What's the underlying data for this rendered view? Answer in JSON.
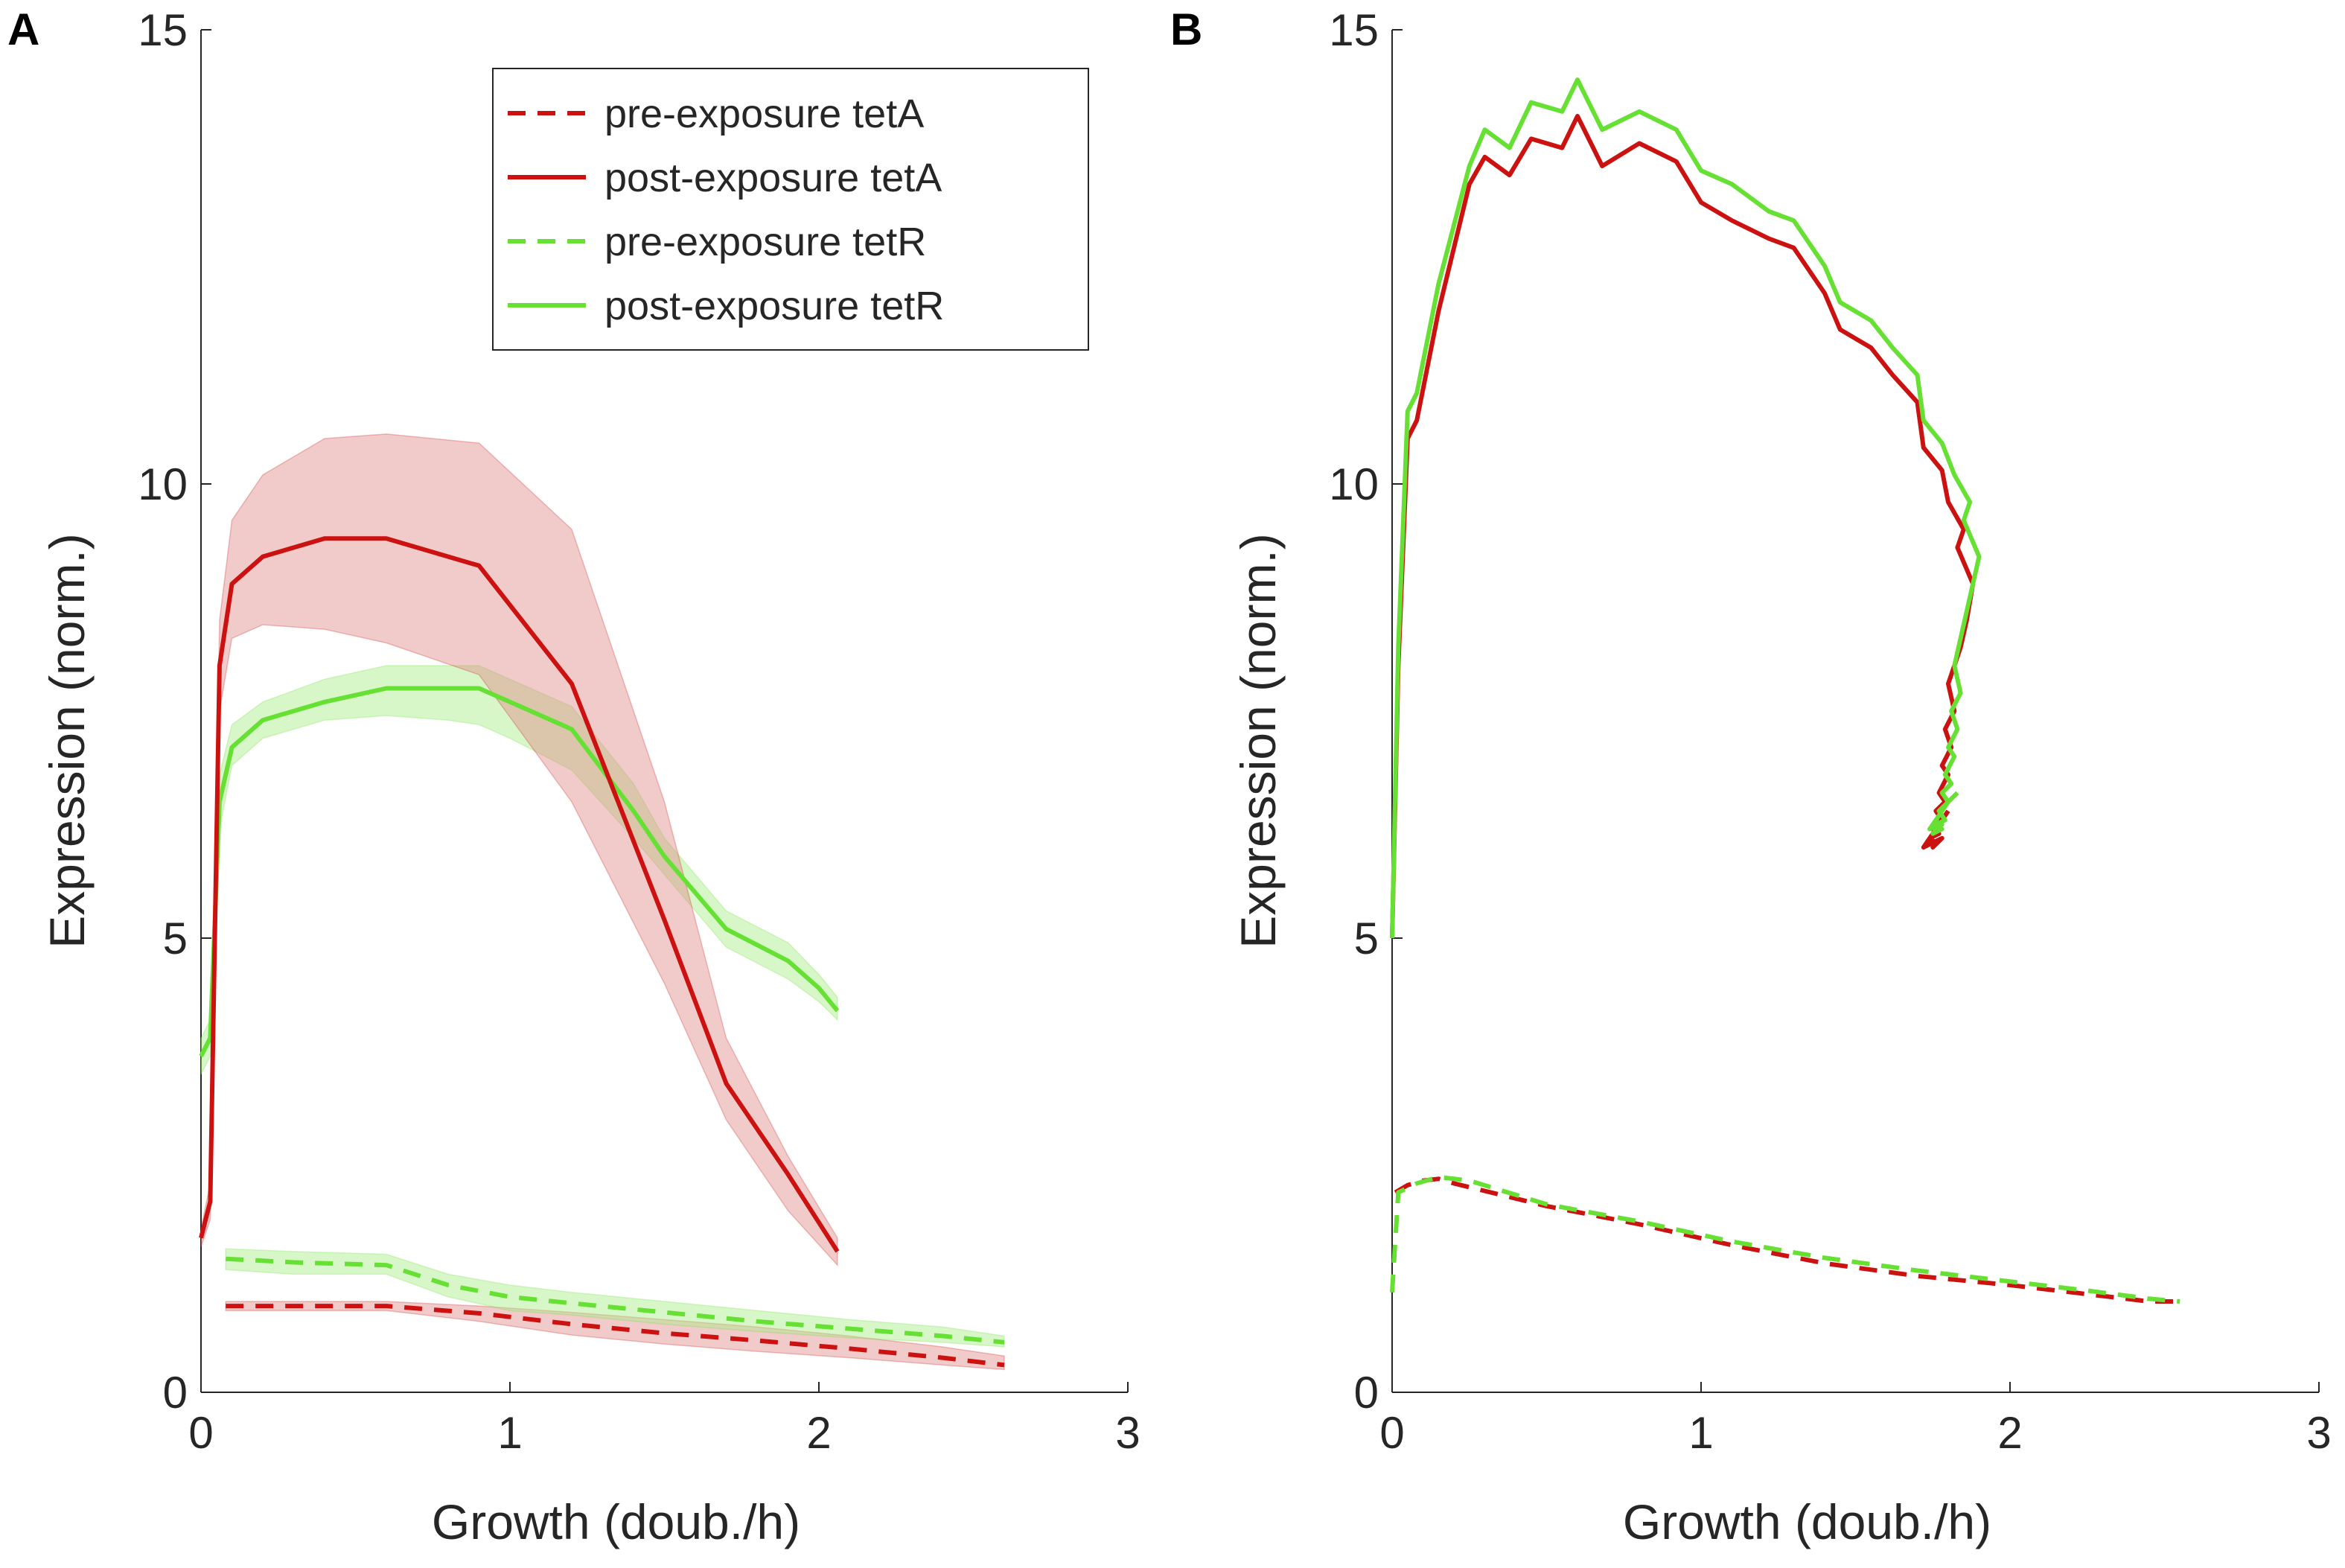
{
  "colors": {
    "red": "#cc1111",
    "green": "#66e033",
    "red_band": "#e08a8a",
    "green_band": "#a8ee88",
    "axis": "#262626"
  },
  "chart_data": [
    {
      "panel": "A",
      "type": "line",
      "xlabel": "Growth (doub./h)",
      "ylabel": "Expression (norm.)",
      "xlim": [
        0,
        3
      ],
      "ylim": [
        0,
        15
      ],
      "xticks": [
        "0",
        "1",
        "2",
        "3"
      ],
      "yticks": [
        "0",
        "5",
        "10",
        "15"
      ],
      "legend": {
        "position": "top-right",
        "entries": [
          {
            "label": "pre-exposure tetA",
            "color": "#cc1111",
            "dash": true
          },
          {
            "label": "post-exposure tetA",
            "color": "#cc1111",
            "dash": false
          },
          {
            "label": "pre-exposure tetR",
            "color": "#66e033",
            "dash": true
          },
          {
            "label": "post-exposure tetR",
            "color": "#66e033",
            "dash": false
          }
        ]
      },
      "series": [
        {
          "name": "pre-exposure tetA",
          "color": "#cc1111",
          "dash": true,
          "shade": true,
          "x": [
            0.08,
            0.3,
            0.6,
            0.9,
            1.2,
            1.5,
            1.8,
            2.1,
            2.4,
            2.6
          ],
          "y": [
            0.95,
            0.95,
            0.95,
            0.87,
            0.75,
            0.65,
            0.57,
            0.48,
            0.38,
            0.3
          ],
          "lower": [
            0.9,
            0.9,
            0.9,
            0.78,
            0.63,
            0.53,
            0.45,
            0.38,
            0.3,
            0.25
          ],
          "upper": [
            1.0,
            1.0,
            1.0,
            0.95,
            0.88,
            0.8,
            0.72,
            0.62,
            0.5,
            0.4
          ]
        },
        {
          "name": "pre-exposure tetR",
          "color": "#66e033",
          "dash": true,
          "shade": true,
          "x": [
            0.08,
            0.3,
            0.6,
            0.8,
            1.0,
            1.2,
            1.5,
            1.8,
            2.1,
            2.4,
            2.6
          ],
          "y": [
            1.47,
            1.43,
            1.4,
            1.18,
            1.05,
            0.98,
            0.88,
            0.78,
            0.7,
            0.62,
            0.55
          ],
          "lower": [
            1.35,
            1.3,
            1.3,
            1.05,
            0.9,
            0.85,
            0.75,
            0.67,
            0.6,
            0.55,
            0.5
          ],
          "upper": [
            1.58,
            1.55,
            1.52,
            1.3,
            1.18,
            1.1,
            1.0,
            0.9,
            0.8,
            0.72,
            0.62
          ]
        },
        {
          "name": "post-exposure tetR",
          "color": "#66e033",
          "dash": false,
          "shade": true,
          "x": [
            0.0,
            0.03,
            0.06,
            0.1,
            0.2,
            0.4,
            0.6,
            0.8,
            0.9,
            1.0,
            1.2,
            1.4,
            1.5,
            1.7,
            1.9,
            2.0,
            2.06
          ],
          "y": [
            3.7,
            3.9,
            6.5,
            7.1,
            7.4,
            7.6,
            7.75,
            7.75,
            7.75,
            7.6,
            7.3,
            6.4,
            5.9,
            5.1,
            4.75,
            4.45,
            4.2
          ],
          "lower": [
            3.5,
            3.7,
            6.2,
            6.9,
            7.2,
            7.4,
            7.45,
            7.4,
            7.35,
            7.2,
            6.85,
            6.1,
            5.7,
            4.9,
            4.55,
            4.3,
            4.1
          ],
          "upper": [
            3.9,
            4.1,
            6.8,
            7.35,
            7.6,
            7.85,
            8.0,
            8.0,
            8.0,
            7.85,
            7.55,
            6.7,
            6.1,
            5.3,
            4.95,
            4.6,
            4.35
          ]
        },
        {
          "name": "post-exposure tetA",
          "color": "#cc1111",
          "dash": false,
          "shade": true,
          "x": [
            0.0,
            0.03,
            0.06,
            0.1,
            0.2,
            0.4,
            0.6,
            0.9,
            1.2,
            1.35,
            1.5,
            1.7,
            1.9,
            2.06
          ],
          "y": [
            1.7,
            2.1,
            8.0,
            8.9,
            9.2,
            9.4,
            9.4,
            9.1,
            7.8,
            6.5,
            5.2,
            3.4,
            2.4,
            1.55
          ],
          "lower": [
            1.6,
            1.9,
            7.5,
            8.3,
            8.45,
            8.4,
            8.25,
            7.9,
            6.5,
            5.5,
            4.5,
            3.0,
            2.0,
            1.4
          ],
          "upper": [
            1.8,
            2.3,
            8.5,
            9.6,
            10.1,
            10.5,
            10.55,
            10.45,
            9.5,
            8.0,
            6.5,
            3.9,
            2.6,
            1.7
          ]
        }
      ]
    },
    {
      "panel": "B",
      "type": "line",
      "xlabel": "Growth (doub./h)",
      "ylabel": "Expression (norm.)",
      "xlim": [
        0,
        3
      ],
      "ylim": [
        0,
        15
      ],
      "xticks": [
        "0",
        "1",
        "2",
        "3"
      ],
      "yticks": [
        "0",
        "5",
        "10",
        "15"
      ],
      "series": [
        {
          "name": "pre-exposure tetA",
          "color": "#cc1111",
          "dash": true,
          "shade": false,
          "x": [
            0.01,
            0.05,
            0.1,
            0.15,
            0.2,
            0.5,
            0.8,
            1.1,
            1.4,
            1.7,
            2.0,
            2.25,
            2.45,
            2.55
          ],
          "y": [
            2.2,
            2.28,
            2.33,
            2.35,
            2.3,
            2.05,
            1.85,
            1.62,
            1.42,
            1.28,
            1.18,
            1.08,
            1.0,
            1.0
          ]
        },
        {
          "name": "pre-exposure tetR",
          "color": "#66e033",
          "dash": true,
          "shade": false,
          "x": [
            0.0,
            0.02,
            0.08,
            0.15,
            0.25,
            0.5,
            0.8,
            1.1,
            1.4,
            1.7,
            2.0,
            2.25,
            2.45,
            2.55
          ],
          "y": [
            1.1,
            2.2,
            2.3,
            2.37,
            2.33,
            2.07,
            1.88,
            1.66,
            1.48,
            1.34,
            1.22,
            1.12,
            1.03,
            1.0
          ]
        },
        {
          "name": "post-exposure tetA",
          "color": "#cc1111",
          "dash": false,
          "shade": false,
          "x": [
            0.0,
            0.02,
            0.05,
            0.08,
            0.15,
            0.25,
            0.3,
            0.38,
            0.45,
            0.55,
            0.6,
            0.68,
            0.8,
            0.92,
            1.0,
            1.1,
            1.22,
            1.3,
            1.4,
            1.45,
            1.55,
            1.62,
            1.7,
            1.72,
            1.78,
            1.8,
            1.85,
            1.83,
            1.88,
            1.86,
            1.84,
            1.82,
            1.8,
            1.82,
            1.79,
            1.81,
            1.78,
            1.8,
            1.77,
            1.79,
            1.76,
            1.78,
            1.75,
            1.77,
            1.74,
            1.76,
            1.75,
            1.78,
            1.72,
            1.76,
            1.78,
            1.8
          ],
          "y": [
            5.0,
            8.0,
            10.5,
            10.7,
            11.9,
            13.3,
            13.6,
            13.4,
            13.8,
            13.7,
            14.05,
            13.5,
            13.75,
            13.55,
            13.1,
            12.9,
            12.7,
            12.6,
            12.1,
            11.7,
            11.5,
            11.2,
            10.9,
            10.4,
            10.15,
            9.8,
            9.5,
            9.3,
            8.9,
            8.5,
            8.2,
            8.0,
            7.8,
            7.5,
            7.3,
            7.1,
            6.9,
            6.8,
            6.6,
            6.5,
            6.4,
            6.3,
            6.2,
            6.15,
            6.1,
            6.05,
            6.0,
            6.1,
            6.0,
            6.2,
            6.3,
            6.4
          ]
        },
        {
          "name": "post-exposure tetR",
          "color": "#66e033",
          "dash": false,
          "shade": false,
          "x": [
            0.0,
            0.02,
            0.05,
            0.08,
            0.15,
            0.25,
            0.3,
            0.38,
            0.45,
            0.55,
            0.6,
            0.68,
            0.8,
            0.92,
            1.0,
            1.1,
            1.22,
            1.3,
            1.4,
            1.45,
            1.55,
            1.62,
            1.7,
            1.72,
            1.78,
            1.82,
            1.87,
            1.85,
            1.9,
            1.88,
            1.86,
            1.84,
            1.82,
            1.84,
            1.81,
            1.83,
            1.8,
            1.82,
            1.79,
            1.81,
            1.78,
            1.8,
            1.77,
            1.79,
            1.76,
            1.78,
            1.75,
            1.78,
            1.74,
            1.77,
            1.8,
            1.83
          ],
          "y": [
            5.0,
            8.2,
            10.8,
            11.0,
            12.2,
            13.5,
            13.9,
            13.7,
            14.2,
            14.1,
            14.45,
            13.9,
            14.1,
            13.9,
            13.45,
            13.3,
            13.0,
            12.9,
            12.4,
            12.0,
            11.8,
            11.5,
            11.2,
            10.7,
            10.45,
            10.1,
            9.8,
            9.6,
            9.2,
            8.9,
            8.6,
            8.3,
            8.0,
            7.7,
            7.5,
            7.3,
            7.1,
            7.0,
            6.8,
            6.7,
            6.6,
            6.5,
            6.4,
            6.3,
            6.25,
            6.2,
            6.15,
            6.25,
            6.2,
            6.35,
            6.5,
            6.6
          ]
        }
      ]
    }
  ]
}
